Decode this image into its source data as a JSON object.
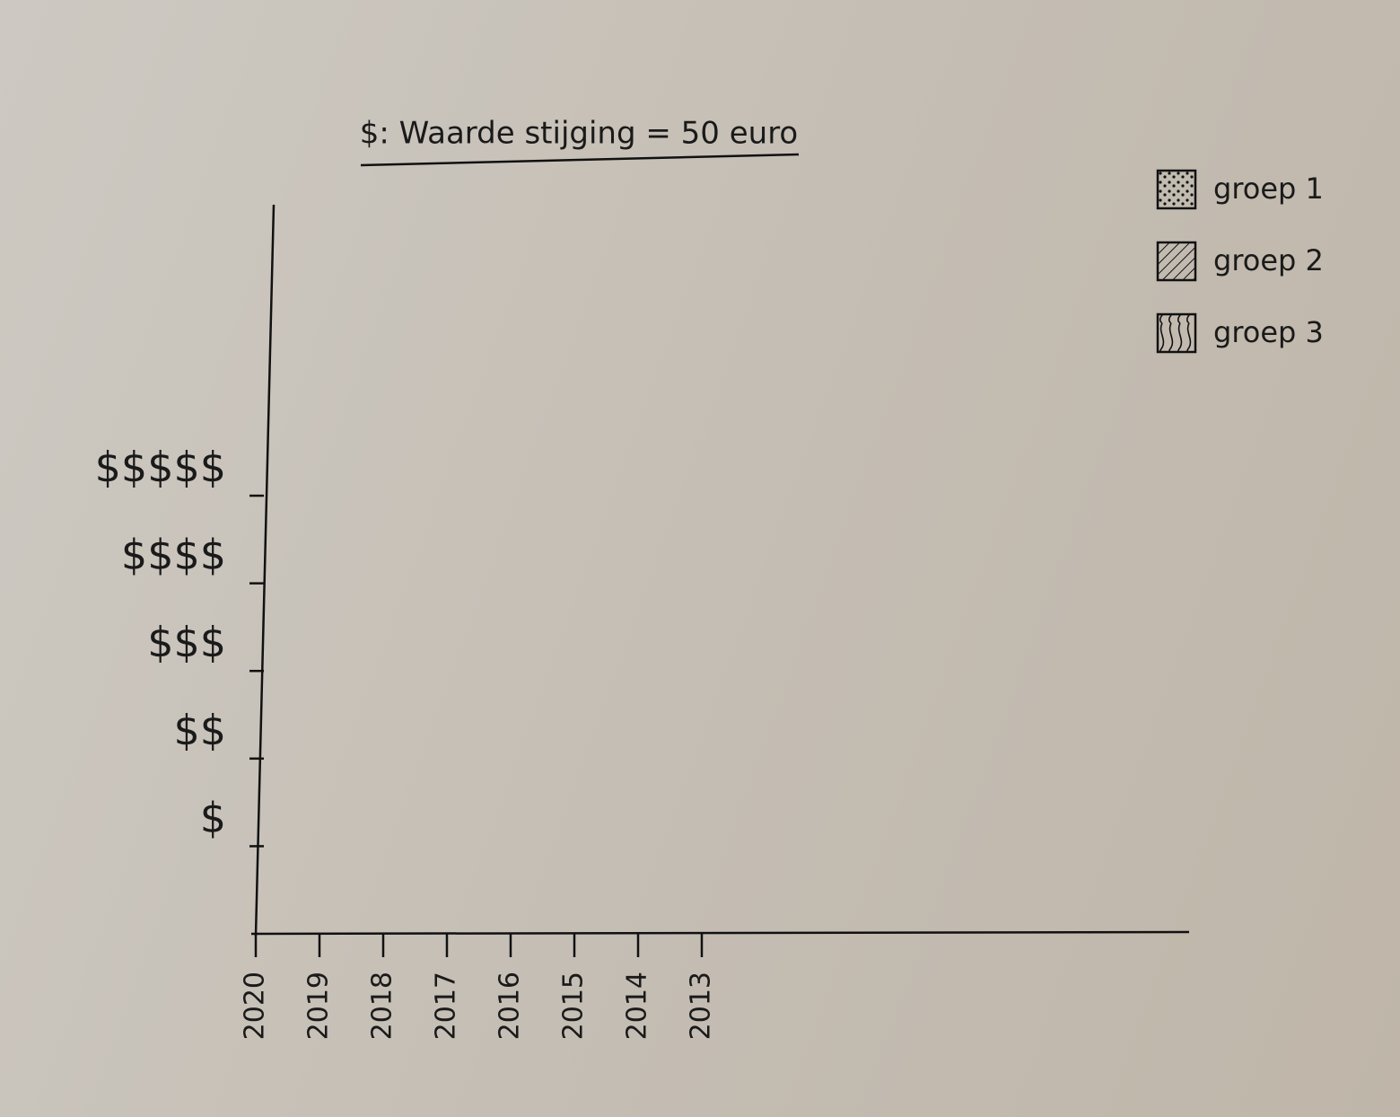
{
  "chart_data": {
    "type": "bar",
    "title": "$: Waarde stijging = 50 euro",
    "categories": [
      "2020",
      "2019",
      "2018",
      "2017",
      "2016",
      "2015",
      "2014",
      "2013"
    ],
    "series": [
      {
        "name": "groep 1",
        "pattern": "dots"
      },
      {
        "name": "groep 2",
        "pattern": "hatch"
      },
      {
        "name": "groep 3",
        "pattern": "waves"
      }
    ],
    "ylim": [
      0,
      415
    ],
    "yticks": [
      {
        "value": 50,
        "label": "$"
      },
      {
        "value": 100,
        "label": "$$"
      },
      {
        "value": 150,
        "label": "$$$"
      },
      {
        "value": 200,
        "label": "$$$$"
      },
      {
        "value": 250,
        "label": "$$$$$"
      }
    ],
    "legend": "top-right"
  }
}
